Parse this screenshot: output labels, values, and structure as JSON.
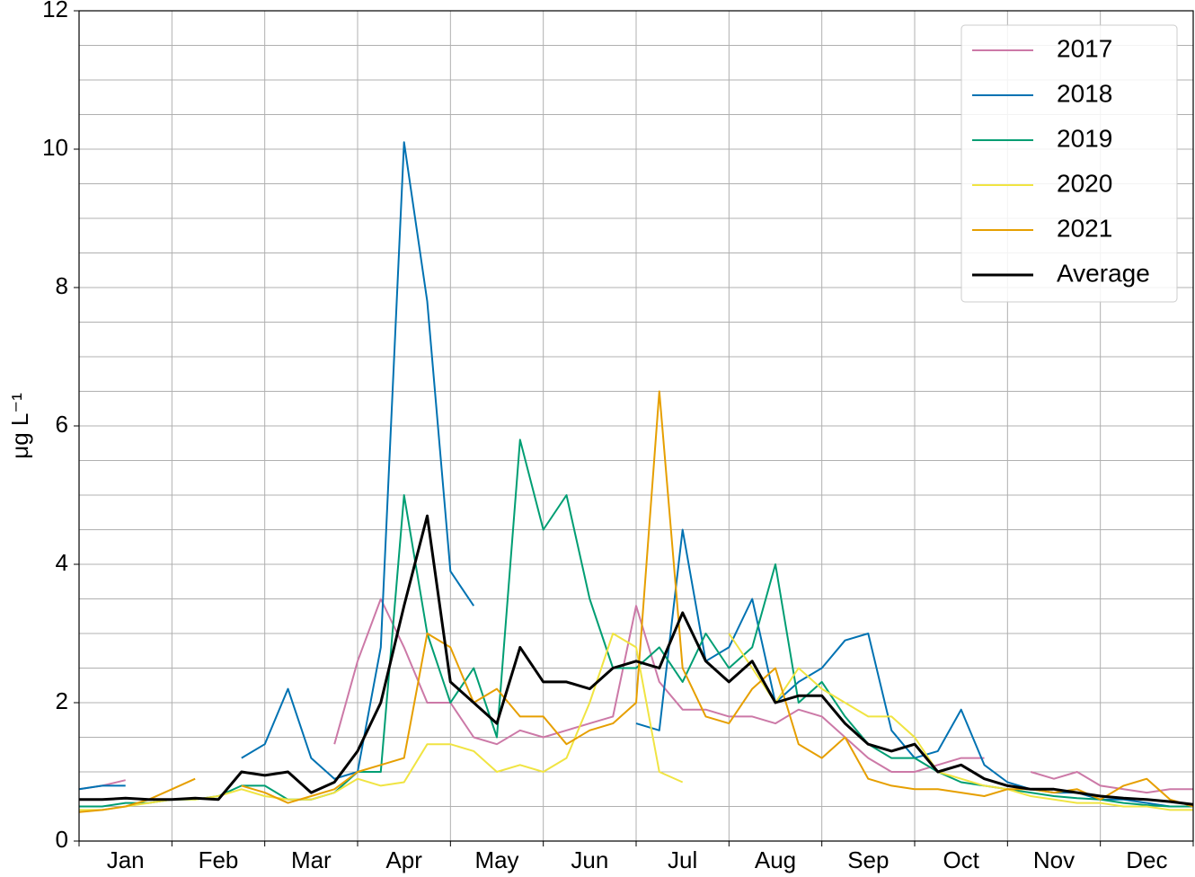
{
  "chart_data": {
    "type": "line",
    "ylabel": "μg L⁻¹",
    "x": [
      0,
      0.25,
      0.5,
      0.75,
      1,
      1.25,
      1.5,
      1.75,
      2,
      2.25,
      2.5,
      2.75,
      3,
      3.25,
      3.5,
      3.75,
      4,
      4.25,
      4.5,
      4.75,
      5,
      5.25,
      5.5,
      5.75,
      6,
      6.25,
      6.5,
      6.75,
      7,
      7.25,
      7.5,
      7.75,
      8,
      8.25,
      8.5,
      8.75,
      9,
      9.25,
      9.5,
      9.75,
      10,
      10.25,
      10.5,
      10.75,
      11,
      11.25,
      11.5,
      11.75,
      12
    ],
    "xlim": [
      0,
      12
    ],
    "xticks": [
      {
        "value": 0.5,
        "label": "Jan"
      },
      {
        "value": 1.5,
        "label": "Feb"
      },
      {
        "value": 2.5,
        "label": "Mar"
      },
      {
        "value": 3.5,
        "label": "Apr"
      },
      {
        "value": 4.5,
        "label": "May"
      },
      {
        "value": 5.5,
        "label": "Jun"
      },
      {
        "value": 6.5,
        "label": "Jul"
      },
      {
        "value": 7.5,
        "label": "Aug"
      },
      {
        "value": 8.5,
        "label": "Sep"
      },
      {
        "value": 9.5,
        "label": "Oct"
      },
      {
        "value": 10.5,
        "label": "Nov"
      },
      {
        "value": 11.5,
        "label": "Dec"
      }
    ],
    "xgrid": [
      0,
      1,
      2,
      3,
      4,
      5,
      6,
      7,
      8,
      9,
      10,
      11,
      12
    ],
    "ylim": [
      0,
      12
    ],
    "yticks": [
      0,
      2,
      4,
      6,
      8,
      10,
      12
    ],
    "yminor_step": 0.5,
    "grid": true,
    "legend": "upper right",
    "series": [
      {
        "name": "2017",
        "color": "#cc79a7",
        "width": 2,
        "values": [
          0.75,
          0.8,
          0.88,
          null,
          null,
          null,
          null,
          null,
          null,
          null,
          null,
          1.4,
          2.6,
          3.5,
          2.8,
          2.0,
          2.0,
          1.5,
          1.4,
          1.6,
          1.5,
          1.6,
          1.7,
          1.8,
          3.4,
          2.3,
          1.9,
          1.9,
          1.8,
          1.8,
          1.7,
          1.9,
          1.8,
          1.5,
          1.2,
          1.0,
          1.0,
          1.1,
          1.2,
          1.2,
          null,
          1.0,
          0.9,
          1.0,
          0.8,
          0.75,
          0.7,
          0.75,
          0.75
        ]
      },
      {
        "name": "2018",
        "color": "#0072b2",
        "width": 2,
        "values": [
          0.75,
          0.8,
          0.8,
          null,
          null,
          null,
          null,
          1.2,
          1.4,
          2.2,
          1.2,
          0.9,
          1.0,
          2.8,
          10.1,
          7.8,
          3.9,
          3.4,
          null,
          null,
          null,
          null,
          null,
          null,
          1.7,
          1.6,
          4.5,
          2.6,
          2.8,
          3.5,
          2.0,
          2.3,
          2.5,
          2.9,
          3.0,
          1.6,
          1.2,
          1.3,
          1.9,
          1.1,
          0.85,
          0.75,
          0.7,
          0.7,
          0.6,
          0.6,
          0.55,
          0.5,
          0.5
        ]
      },
      {
        "name": "2019",
        "color": "#009e73",
        "width": 2,
        "values": [
          0.5,
          0.5,
          0.55,
          0.55,
          0.6,
          0.6,
          0.65,
          0.8,
          0.8,
          0.6,
          0.6,
          0.7,
          1.0,
          1.0,
          5.0,
          3.0,
          2.0,
          2.5,
          1.5,
          5.8,
          4.5,
          5.0,
          3.5,
          2.5,
          2.5,
          2.8,
          2.3,
          3.0,
          2.5,
          2.8,
          4.0,
          2.0,
          2.3,
          1.8,
          1.4,
          1.2,
          1.2,
          1.0,
          0.85,
          0.8,
          0.75,
          0.7,
          0.65,
          0.62,
          0.6,
          0.55,
          0.52,
          0.5,
          0.5
        ]
      },
      {
        "name": "2020",
        "color": "#f0e442",
        "width": 2,
        "values": [
          0.45,
          0.45,
          0.5,
          0.55,
          0.6,
          0.6,
          0.65,
          0.75,
          0.65,
          0.6,
          0.6,
          0.7,
          0.9,
          0.8,
          0.85,
          1.4,
          1.4,
          1.3,
          1.0,
          1.1,
          1.0,
          1.2,
          2.0,
          3.0,
          2.8,
          1.0,
          0.85,
          null,
          3.0,
          2.5,
          2.0,
          2.5,
          2.2,
          2.0,
          1.8,
          1.8,
          1.5,
          1.0,
          0.9,
          0.8,
          0.75,
          0.65,
          0.6,
          0.55,
          0.55,
          0.5,
          0.5,
          0.45,
          0.45
        ]
      },
      {
        "name": "2021",
        "color": "#e69f00",
        "width": 2,
        "values": [
          0.42,
          0.45,
          0.5,
          0.6,
          0.75,
          0.9,
          null,
          0.8,
          0.7,
          0.55,
          0.65,
          0.75,
          1.0,
          1.1,
          1.2,
          3.0,
          2.8,
          2.0,
          2.2,
          1.8,
          1.8,
          1.4,
          1.6,
          1.7,
          2.0,
          6.5,
          2.5,
          1.8,
          1.7,
          2.2,
          2.5,
          1.4,
          1.2,
          1.5,
          0.9,
          0.8,
          0.75,
          0.75,
          0.7,
          0.65,
          0.75,
          0.75,
          0.7,
          0.75,
          0.6,
          0.8,
          0.9,
          0.6,
          0.5
        ]
      },
      {
        "name": "Average",
        "color": "#000000",
        "width": 3,
        "values": [
          0.6,
          0.6,
          0.62,
          0.6,
          0.6,
          0.62,
          0.6,
          1.0,
          0.95,
          1.0,
          0.7,
          0.85,
          1.3,
          2.0,
          3.4,
          4.7,
          2.3,
          2.0,
          1.7,
          2.8,
          2.3,
          2.3,
          2.2,
          2.5,
          2.6,
          2.5,
          3.3,
          2.6,
          2.3,
          2.6,
          2.0,
          2.1,
          2.1,
          1.7,
          1.4,
          1.3,
          1.4,
          1.0,
          1.1,
          0.9,
          0.8,
          0.75,
          0.75,
          0.7,
          0.65,
          0.62,
          0.6,
          0.57,
          0.53
        ]
      }
    ]
  }
}
